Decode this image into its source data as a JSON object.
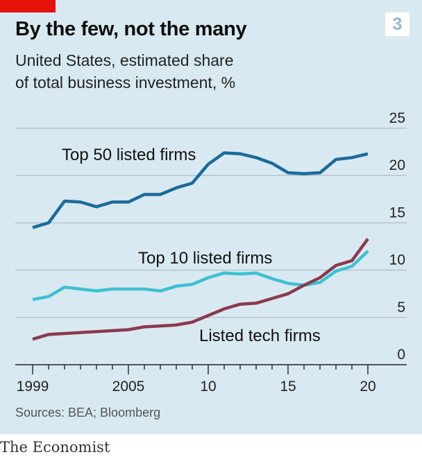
{
  "header": {
    "chart_number": "3",
    "title": "By the few, not the many",
    "subtitle_line1": "United States, estimated share",
    "subtitle_line2": "of total business investment, %"
  },
  "footer": {
    "source": "Sources: BEA; Bloomberg",
    "brand": "The Economist"
  },
  "colors": {
    "background": "#d9e9f1",
    "accent_red": "#e3120b",
    "gridline": "#b7c6cf",
    "top50": "#1a6b9b",
    "top10": "#3ebfd4",
    "tech": "#8b3a4e"
  },
  "chart_data": {
    "type": "line",
    "title": "By the few, not the many",
    "subtitle": "United States, estimated share of total business investment, %",
    "x": [
      1999,
      2000,
      2001,
      2002,
      2003,
      2004,
      2005,
      2006,
      2007,
      2008,
      2009,
      2010,
      2011,
      2012,
      2013,
      2014,
      2015,
      2016,
      2017,
      2018,
      2019,
      2020
    ],
    "xlim": [
      1999,
      2020
    ],
    "x_ticks": [
      "1999",
      "2005",
      "10",
      "15",
      "20"
    ],
    "x_tick_values": [
      1999,
      2005,
      2010,
      2015,
      2020
    ],
    "ylim": [
      0,
      25
    ],
    "y_ticks": [
      0,
      5,
      10,
      15,
      20,
      25
    ],
    "grid": true,
    "series": [
      {
        "name": "Top 50 listed firms",
        "color": "#1a6b9b",
        "values": [
          14.5,
          15.0,
          17.3,
          17.2,
          16.7,
          17.2,
          17.2,
          18.0,
          18.0,
          18.7,
          19.2,
          21.2,
          22.4,
          22.3,
          21.9,
          21.3,
          20.3,
          20.2,
          20.3,
          21.7,
          21.9,
          22.3
        ]
      },
      {
        "name": "Top 10 listed firms",
        "color": "#3ebfd4",
        "values": [
          6.9,
          7.2,
          8.2,
          8.0,
          7.8,
          8.0,
          8.0,
          8.0,
          7.8,
          8.3,
          8.5,
          9.2,
          9.7,
          9.6,
          9.7,
          9.1,
          8.6,
          8.4,
          8.7,
          9.9,
          10.4,
          12.0
        ]
      },
      {
        "name": "Listed tech firms",
        "color": "#8b3a4e",
        "values": [
          2.7,
          3.2,
          3.3,
          3.4,
          3.5,
          3.6,
          3.7,
          4.0,
          4.1,
          4.2,
          4.5,
          5.2,
          5.9,
          6.4,
          6.5,
          7.0,
          7.5,
          8.4,
          9.2,
          10.5,
          11.0,
          13.3
        ]
      }
    ]
  }
}
